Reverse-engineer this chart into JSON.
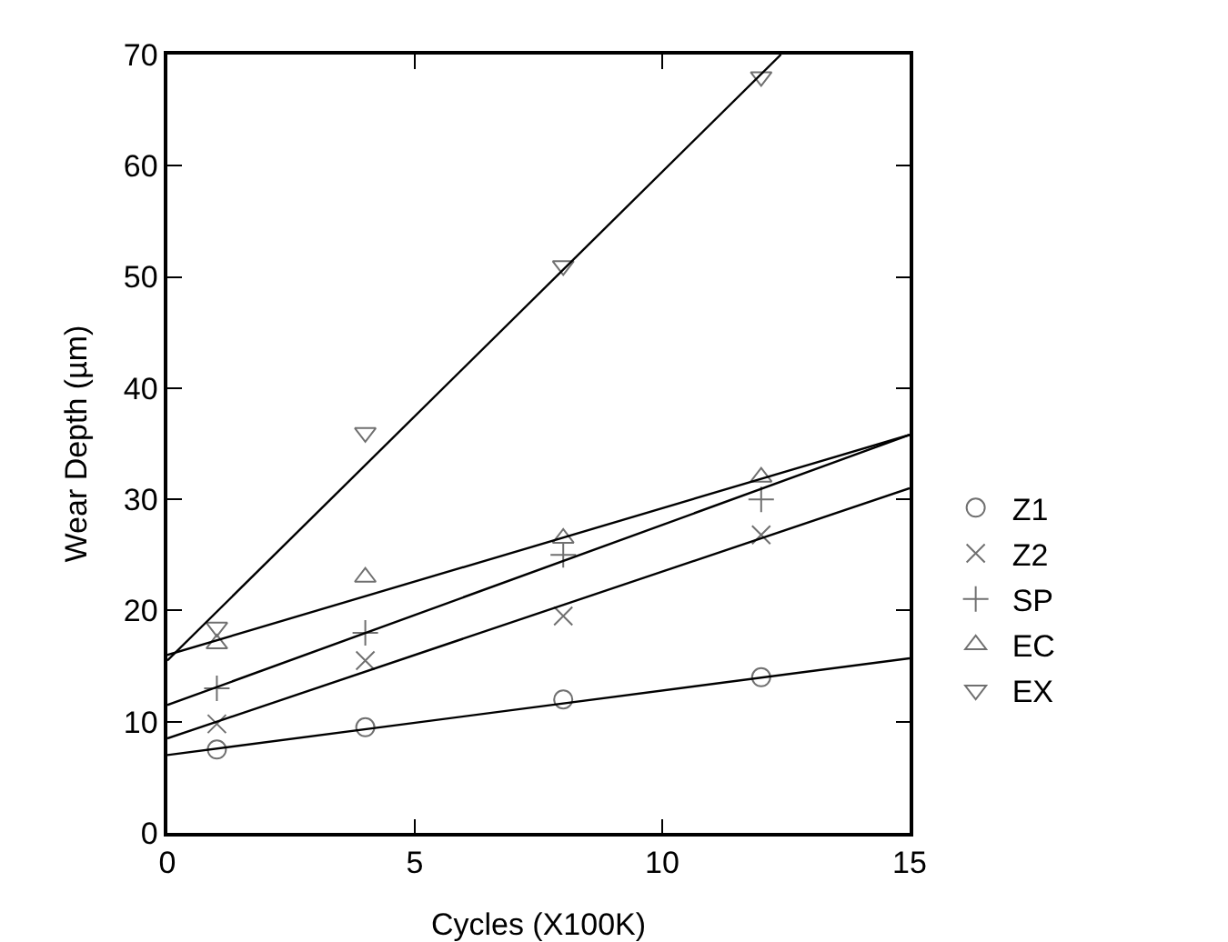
{
  "chart_data": {
    "type": "scatter",
    "xlabel": "Cycles (X100K)",
    "ylabel": "Wear Depth (µm)",
    "x": [
      1,
      4,
      8,
      12
    ],
    "series": [
      {
        "name": "Z1",
        "color": "#707070",
        "marker": "circle",
        "values": [
          7.5,
          9.5,
          12,
          14
        ]
      },
      {
        "name": "Z2",
        "color": "#707070",
        "marker": "x",
        "values": [
          9.8,
          15.5,
          19.5,
          26.8
        ]
      },
      {
        "name": "SP",
        "color": "#707070",
        "marker": "cross",
        "values": [
          13,
          18,
          25,
          30
        ]
      },
      {
        "name": "EC",
        "color": "#707070",
        "marker": "triangle",
        "values": [
          17,
          23,
          26.5,
          32
        ]
      },
      {
        "name": "EX",
        "color": "#707070",
        "marker": "triangle-down",
        "values": [
          18.5,
          36,
          51,
          68
        ]
      },
      {
        "type": "line",
        "color": "#000000",
        "marker": "none",
        "x": [
          0,
          15
        ],
        "values": [
          7,
          15.7
        ]
      },
      {
        "type": "line",
        "color": "#000000",
        "marker": "none",
        "x": [
          0,
          15
        ],
        "values": [
          8.5,
          31
        ]
      },
      {
        "type": "line",
        "color": "#000000",
        "marker": "none",
        "x": [
          0,
          15
        ],
        "values": [
          11.5,
          35.8
        ]
      },
      {
        "type": "line",
        "color": "#000000",
        "marker": "none",
        "x": [
          0,
          15
        ],
        "values": [
          16,
          35.8
        ]
      },
      {
        "type": "line",
        "color": "#000000",
        "marker": "none",
        "x": [
          0,
          12.4
        ],
        "values": [
          15.5,
          70
        ]
      }
    ],
    "xlim": [
      0,
      15
    ],
    "xticks": [
      0,
      5,
      10,
      15
    ],
    "ylim": [
      0,
      70
    ],
    "yticks": [
      0,
      10,
      20,
      30,
      40,
      50,
      60,
      70
    ],
    "grid": false,
    "legend": "right"
  }
}
